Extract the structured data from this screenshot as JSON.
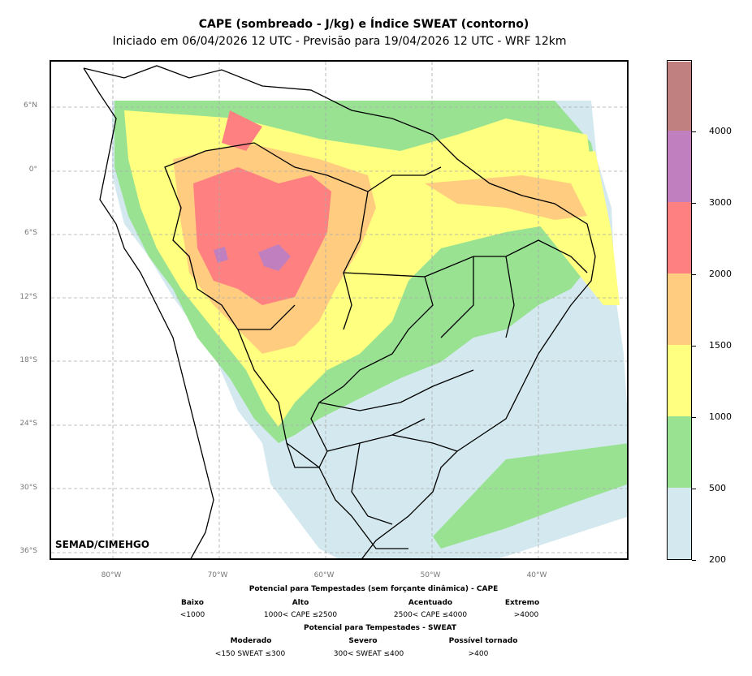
{
  "title": "CAPE (sombreado - J/kg) e Índice SWEAT (contorno)",
  "subtitle": "Iniciado em 06/04/2026 12 UTC - Previsão para 19/04/2026 12 UTC - WRF 12km",
  "watermark": "SEMAD/CIMEHGO",
  "lat_labels": [
    "6°N",
    "0°",
    "6°S",
    "12°S",
    "18°S",
    "24°S",
    "30°S",
    "36°S"
  ],
  "lon_labels": [
    "80°W",
    "70°W",
    "60°W",
    "50°W",
    "40°W"
  ],
  "colorbar": {
    "colors": [
      "#d4e9ef",
      "#98e292",
      "#ffff80",
      "#ffcc80",
      "#ff8080",
      "#c080c0",
      "#c08080"
    ],
    "labels": [
      "200",
      "500",
      "1000",
      "1500",
      "2000",
      "3000",
      "4000"
    ]
  },
  "legend": {
    "cape_title": "Potencial para Tempestades (sem forçante dinâmica) - CAPE",
    "cape_levels": [
      {
        "name": "Baixo",
        "range": "<1000"
      },
      {
        "name": "Alto",
        "range": "1000< CAPE ≤2500"
      },
      {
        "name": "Acentuado",
        "range": "2500< CAPE ≤4000"
      },
      {
        "name": "Extremo",
        "range": ">4000"
      }
    ],
    "sweat_title": "Potencial para Tempestades - SWEAT",
    "sweat_levels": [
      {
        "name": "Moderado",
        "range": "<150 SWEAT ≤300"
      },
      {
        "name": "Severo",
        "range": "300< SWEAT ≤400"
      },
      {
        "name": "Possível tornado",
        "range": ">400"
      }
    ]
  }
}
